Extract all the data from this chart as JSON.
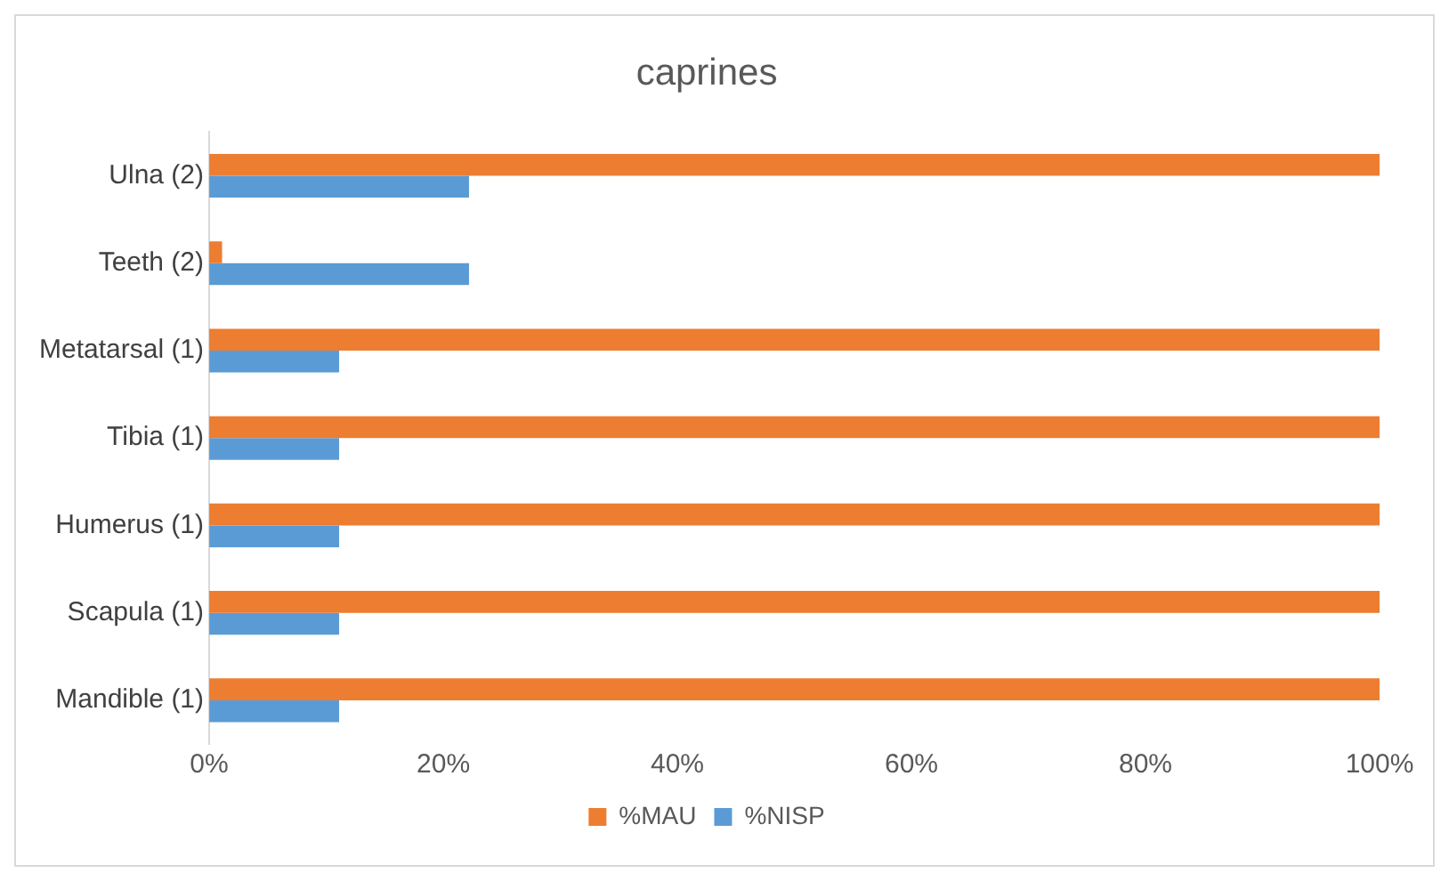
{
  "chart_data": {
    "type": "bar",
    "orientation": "horizontal",
    "title": "caprines",
    "categories": [
      "Ulna (2)",
      "Teeth (2)",
      "Metatarsal (1)",
      "Tibia (1)",
      "Humerus (1)",
      "Scapula (1)",
      "Mandible (1)"
    ],
    "series": [
      {
        "name": "%MAU",
        "color": "#ed7d31",
        "values": [
          100,
          1.1,
          100,
          100,
          100,
          100,
          100
        ]
      },
      {
        "name": "%NISP",
        "color": "#5b9bd5",
        "values": [
          22.2,
          22.2,
          11.1,
          11.1,
          11.1,
          11.1,
          11.1
        ]
      }
    ],
    "xlim": [
      0,
      100
    ],
    "xticks": [
      {
        "value": 0,
        "label": "0%"
      },
      {
        "value": 20,
        "label": "20%"
      },
      {
        "value": 40,
        "label": "40%"
      },
      {
        "value": 60,
        "label": "60%"
      },
      {
        "value": 80,
        "label": "80%"
      },
      {
        "value": 100,
        "label": "100%"
      }
    ],
    "grid": false,
    "legend": "bottom"
  }
}
